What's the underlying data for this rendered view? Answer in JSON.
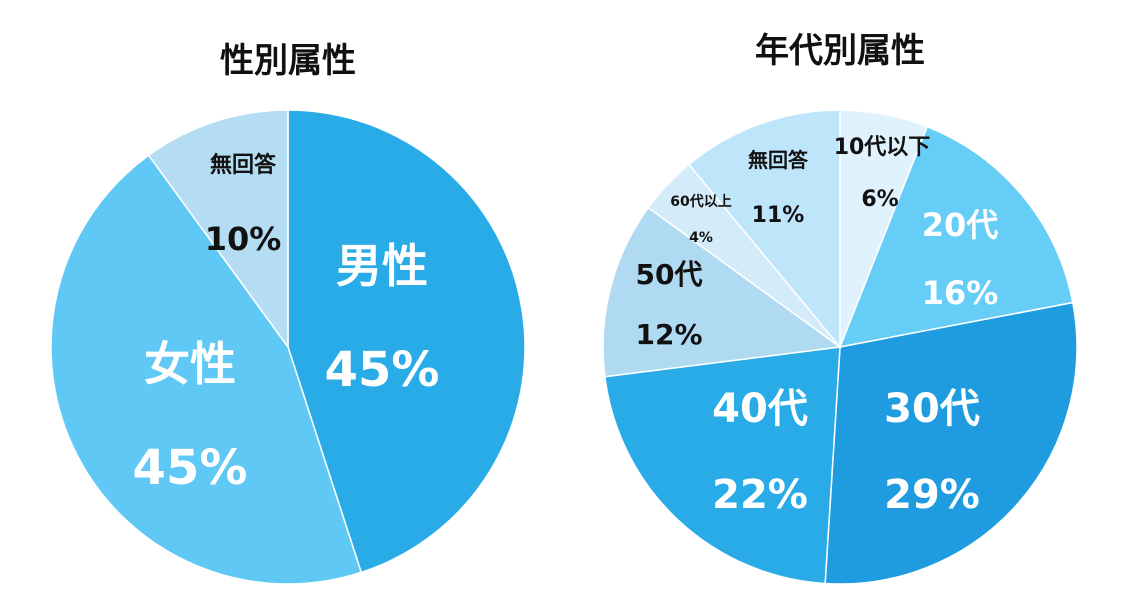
{
  "chart_data": [
    {
      "type": "pie",
      "title": "性別属性",
      "slices": [
        {
          "label": "男性",
          "value": 45,
          "value_text": "45%",
          "color": "#29abe8",
          "text_color": "#ffffff"
        },
        {
          "label": "女性",
          "value": 45,
          "value_text": "45%",
          "color": "#5fc8f5",
          "text_color": "#ffffff"
        },
        {
          "label": "無回答",
          "value": 10,
          "value_text": "10%",
          "color": "#b4dcf2",
          "text_color": "#111111"
        }
      ]
    },
    {
      "type": "pie",
      "title": "年代別属性",
      "slices": [
        {
          "label": "10代以下",
          "value": 6,
          "value_text": "6%",
          "color": "#dff2fd",
          "text_color": "#111111"
        },
        {
          "label": "20代",
          "value": 16,
          "value_text": "16%",
          "color": "#66cdf7",
          "text_color": "#ffffff"
        },
        {
          "label": "30代",
          "value": 29,
          "value_text": "29%",
          "color": "#1f9ce0",
          "text_color": "#ffffff"
        },
        {
          "label": "40代",
          "value": 22,
          "value_text": "22%",
          "color": "#29abe8",
          "text_color": "#ffffff"
        },
        {
          "label": "50代",
          "value": 12,
          "value_text": "12%",
          "color": "#b0daf2",
          "text_color": "#111111"
        },
        {
          "label": "60代以上",
          "value": 4,
          "value_text": "4%",
          "color": "#d4ecf9",
          "text_color": "#111111"
        },
        {
          "label": "無回答",
          "value": 11,
          "value_text": "11%",
          "color": "#bfe5fa",
          "text_color": "#111111"
        }
      ]
    }
  ]
}
